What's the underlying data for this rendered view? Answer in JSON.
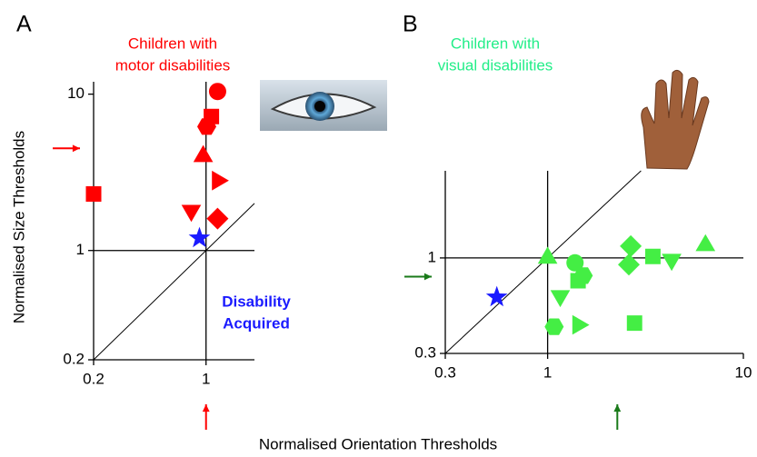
{
  "figure": {
    "xlabel": "Normalised Orientation Thresholds"
  },
  "chart_data": [
    {
      "type": "scatter",
      "panel": "A",
      "title_lines": [
        "Children with",
        "motor disabilities"
      ],
      "title_color": "#ff0000",
      "ylabel": "Normalised Size Thresholds",
      "annotation_lines": [
        "Disability",
        "Acquired"
      ],
      "annotation_color": "#1a1aff",
      "log_x": true,
      "log_y": true,
      "xlim": [
        0.2,
        2
      ],
      "ylim": [
        0.2,
        12
      ],
      "xticks": [
        0.2,
        1
      ],
      "yticks": [
        0.2,
        1,
        10
      ],
      "ref_x": 1,
      "ref_y": 1,
      "identity_line": true,
      "arrow_x": 1,
      "arrow_y": 4.5,
      "arrow_color": "#ff0000",
      "series": [
        {
          "color": "#ff0000",
          "x": [
            1.18,
            1.08,
            1.01,
            0.96,
            1.18,
            0.81,
            1.18,
            0.2
          ],
          "values": [
            10.4,
            7.2,
            6.2,
            4.0,
            2.8,
            1.8,
            1.6,
            2.3
          ],
          "markers": [
            "circle",
            "square",
            "hexagon",
            "triangle-up",
            "triangle-right",
            "triangle-down",
            "diamond",
            "square"
          ]
        },
        {
          "color": "#1a1aff",
          "x": [
            0.91
          ],
          "values": [
            1.2
          ],
          "markers": [
            "star"
          ]
        }
      ]
    },
    {
      "type": "scatter",
      "panel": "B",
      "title_lines": [
        "Children with",
        "visual disabilities"
      ],
      "title_color": "#22ee88",
      "log_x": true,
      "log_y": true,
      "xlim": [
        0.3,
        10
      ],
      "ylim": [
        0.3,
        3
      ],
      "xticks": [
        0.3,
        1,
        10
      ],
      "yticks": [
        0.3,
        1
      ],
      "ref_x": 1,
      "ref_y": 1,
      "identity_line": true,
      "arrow_x": 2.27,
      "arrow_y": 0.79,
      "arrow_color": "#1a7a1a",
      "series": [
        {
          "color": "#44ee44",
          "x": [
            1.0,
            6.4,
            2.66,
            2.6,
            3.45,
            4.3,
            1.38,
            1.52,
            1.43,
            1.16,
            1.08,
            1.43,
            2.78
          ],
          "values": [
            1.0,
            1.17,
            1.16,
            0.92,
            1.02,
            0.98,
            0.94,
            0.8,
            0.75,
            0.62,
            0.42,
            0.43,
            0.44
          ],
          "markers": [
            "triangle-up",
            "triangle-up",
            "diamond",
            "diamond",
            "square",
            "triangle-down",
            "circle",
            "hexagon",
            "square",
            "triangle-down",
            "hexagon",
            "triangle-right",
            "square"
          ]
        },
        {
          "color": "#1a1aff",
          "x": [
            0.55
          ],
          "values": [
            0.61
          ],
          "markers": [
            "star"
          ]
        }
      ]
    }
  ]
}
